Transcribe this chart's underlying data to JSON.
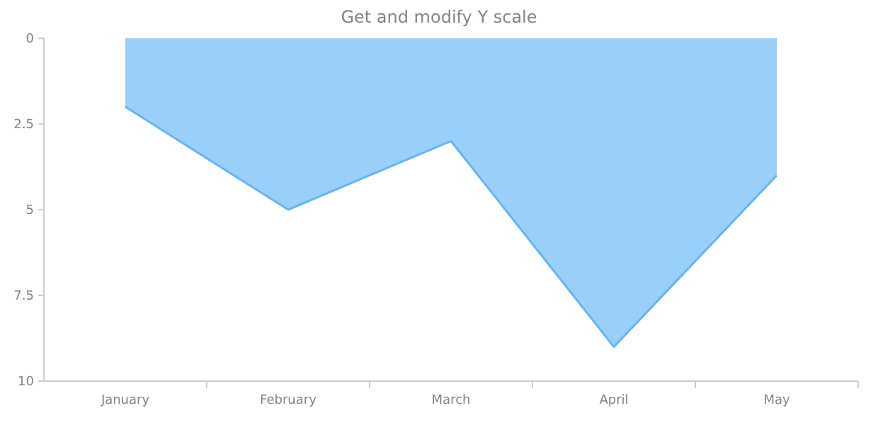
{
  "chart_data": {
    "type": "area",
    "title": "Get and modify Y scale",
    "categories": [
      "January",
      "February",
      "March",
      "April",
      "May"
    ],
    "series": [
      {
        "color": "#64b5f6",
        "values": [
          2,
          5,
          3,
          9,
          4
        ]
      }
    ],
    "ylim": [
      10,
      0
    ],
    "yticks": [
      0,
      {
        "value": 2.5,
        "label": "2.5"
      },
      5,
      {
        "value": 7.5,
        "label": "7.5"
      },
      10
    ],
    "grid": false
  }
}
